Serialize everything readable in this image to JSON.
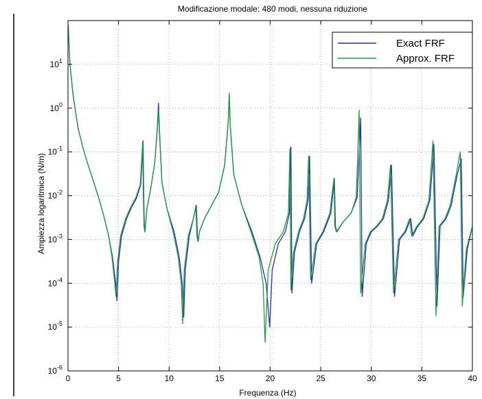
{
  "chart_data": {
    "type": "line",
    "title": "Modificazione modale: 480 modi, nessuna riduzione",
    "xlabel": "Frequenza (Hz)",
    "ylabel": "Ampiezza logaritmica (N/m)",
    "xlim": [
      0,
      40
    ],
    "ylim": [
      1e-06,
      100
    ],
    "yscale": "log",
    "grid": true,
    "legend": "top-right",
    "x_ticks": [
      "0",
      "5",
      "10",
      "15",
      "20",
      "25",
      "30",
      "35",
      "40"
    ],
    "y_ticks": [
      {
        "base": "10",
        "exp": "-6"
      },
      {
        "base": "10",
        "exp": "-5"
      },
      {
        "base": "10",
        "exp": "-4"
      },
      {
        "base": "10",
        "exp": "-3"
      },
      {
        "base": "10",
        "exp": "-2"
      },
      {
        "base": "10",
        "exp": "-1"
      },
      {
        "base": "10",
        "exp": "0"
      },
      {
        "base": "10",
        "exp": "1"
      }
    ],
    "series": [
      {
        "name": "Exact FRF",
        "color": "#2b2bb0",
        "x": [
          0.02,
          0.2,
          0.5,
          1,
          1.5,
          2,
          2.5,
          3,
          3.5,
          4,
          4.4,
          4.7,
          4.85,
          5.0,
          5.3,
          5.8,
          6.3,
          6.8,
          7.2,
          7.42,
          7.5,
          7.55,
          7.62,
          7.8,
          8.2,
          8.6,
          8.85,
          8.95,
          9.05,
          9.3,
          9.8,
          10.5,
          11.0,
          11.3,
          11.45,
          11.6,
          12.0,
          12.4,
          12.7,
          12.8,
          12.88,
          13.0,
          13.5,
          14.2,
          14.9,
          15.5,
          15.85,
          15.95,
          16.05,
          16.4,
          17.2,
          18.2,
          19.0,
          19.6,
          19.95,
          20.2,
          20.8,
          21.5,
          21.9,
          22.05,
          22.15,
          22.4,
          22.9,
          23.4,
          23.75,
          23.9,
          24.1,
          24.6,
          25.3,
          26.0,
          26.35,
          26.45,
          26.6,
          27.2,
          28.0,
          28.6,
          28.85,
          28.95,
          29.1,
          29.5,
          30.0,
          30.6,
          31.2,
          31.7,
          32.0,
          32.3,
          32.8,
          33.4,
          33.9,
          34.1,
          34.6,
          35.2,
          35.8,
          36.2,
          36.5,
          36.8,
          37.4,
          37.9,
          38.5,
          38.9,
          39.1,
          39.5,
          40.0
        ],
        "y": [
          80,
          10,
          2,
          0.35,
          0.12,
          0.05,
          0.022,
          0.0095,
          0.0038,
          0.0013,
          0.0004,
          0.00011,
          4e-05,
          0.0003,
          0.0012,
          0.003,
          0.0055,
          0.009,
          0.018,
          0.18,
          0.01,
          0.002,
          0.0015,
          0.005,
          0.015,
          0.06,
          0.4,
          1.3,
          0.3,
          0.02,
          0.005,
          0.0015,
          0.0004,
          0.0001,
          1.7e-05,
          0.0002,
          0.0012,
          0.003,
          0.006,
          0.0012,
          0.0009,
          0.0015,
          0.003,
          0.006,
          0.012,
          0.05,
          0.5,
          2.0,
          0.4,
          0.03,
          0.006,
          0.0015,
          0.0004,
          0.0001,
          1e-05,
          0.0002,
          0.0008,
          0.0015,
          0.004,
          0.13,
          6e-05,
          0.0005,
          0.0015,
          0.003,
          0.008,
          0.08,
          0.0001,
          0.0008,
          0.0015,
          0.004,
          0.025,
          0.002,
          0.0015,
          0.0025,
          0.004,
          0.009,
          0.15,
          0.6,
          5e-05,
          0.0008,
          0.0015,
          0.002,
          0.003,
          0.008,
          0.05,
          5e-05,
          0.001,
          0.0015,
          0.003,
          0.0012,
          0.002,
          0.003,
          0.008,
          0.15,
          3e-05,
          0.002,
          0.003,
          0.006,
          0.03,
          0.07,
          5e-05,
          0.0006,
          0.002
        ]
      },
      {
        "name": "Approx. FRF",
        "color": "#1e9a3e",
        "x": [
          0.02,
          0.2,
          0.5,
          1,
          1.5,
          2,
          2.5,
          3,
          3.5,
          4,
          4.35,
          4.6,
          4.75,
          4.9,
          5.2,
          5.7,
          6.2,
          6.7,
          7.15,
          7.38,
          7.46,
          7.52,
          7.6,
          7.8,
          8.2,
          8.6,
          8.85,
          8.95,
          9.05,
          9.3,
          9.8,
          10.4,
          10.9,
          11.2,
          11.35,
          11.5,
          11.9,
          12.4,
          12.65,
          12.75,
          12.85,
          13.0,
          13.5,
          14.2,
          14.9,
          15.5,
          15.85,
          15.95,
          16.05,
          16.4,
          17.2,
          18.1,
          18.9,
          19.3,
          19.5,
          19.8,
          20.5,
          21.3,
          21.8,
          21.95,
          22.05,
          22.3,
          22.8,
          23.3,
          23.65,
          23.8,
          24.0,
          24.5,
          25.2,
          25.9,
          26.3,
          26.4,
          26.55,
          27.2,
          28.0,
          28.5,
          28.7,
          28.8,
          28.95,
          29.4,
          29.9,
          30.5,
          31.1,
          31.6,
          31.9,
          32.2,
          32.7,
          33.3,
          33.8,
          34.0,
          34.5,
          35.1,
          35.7,
          36.1,
          36.4,
          36.7,
          37.3,
          37.8,
          38.4,
          38.8,
          39.0,
          39.4,
          40.0
        ],
        "y": [
          80,
          10,
          2,
          0.35,
          0.12,
          0.05,
          0.022,
          0.0095,
          0.0038,
          0.0013,
          0.0004,
          0.00012,
          5e-05,
          0.0003,
          0.0012,
          0.003,
          0.0055,
          0.009,
          0.018,
          0.16,
          0.01,
          0.002,
          0.0015,
          0.005,
          0.015,
          0.06,
          0.35,
          0.9,
          0.25,
          0.02,
          0.005,
          0.0015,
          0.0004,
          0.0001,
          1.2e-05,
          0.0002,
          0.0012,
          0.003,
          0.006,
          0.0012,
          0.0009,
          0.0015,
          0.003,
          0.006,
          0.012,
          0.05,
          0.5,
          2.2,
          0.4,
          0.03,
          0.006,
          0.0015,
          0.0004,
          0.0001,
          4.5e-06,
          0.0002,
          0.0008,
          0.0015,
          0.004,
          0.12,
          7e-05,
          0.0005,
          0.0015,
          0.003,
          0.008,
          0.08,
          0.00012,
          0.0008,
          0.0015,
          0.004,
          0.025,
          0.002,
          0.0015,
          0.0025,
          0.004,
          0.009,
          0.15,
          0.9,
          6e-05,
          0.0008,
          0.0015,
          0.002,
          0.003,
          0.008,
          0.05,
          6e-05,
          0.001,
          0.0015,
          0.003,
          0.0012,
          0.002,
          0.003,
          0.008,
          0.18,
          1.8e-05,
          0.002,
          0.003,
          0.006,
          0.03,
          0.1,
          3e-05,
          0.0006,
          0.002
        ]
      }
    ]
  }
}
